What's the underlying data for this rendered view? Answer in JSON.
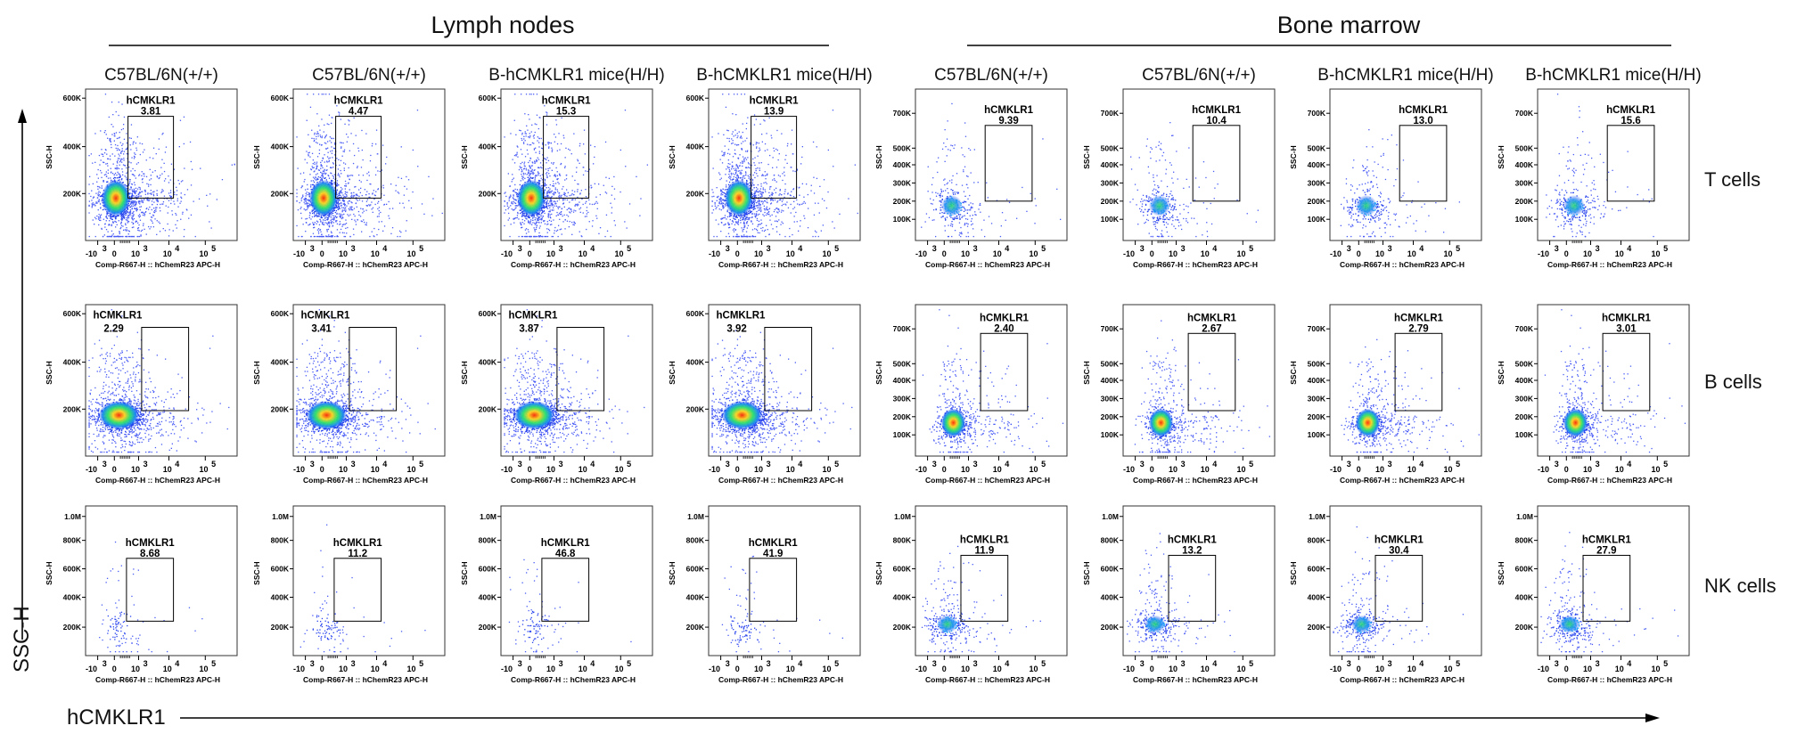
{
  "figure": {
    "tissues": [
      "Lymph nodes",
      "Bone marrow"
    ],
    "x_axis_title": "hCMKLR1",
    "y_axis_title": "SSC-H"
  },
  "chart_data": {
    "type": "scatter",
    "plot_kind": "flow cytometry density dot plots",
    "tissues": [
      "Lymph nodes",
      "Bone marrow"
    ],
    "columns": [
      "C57BL/6N(+/+)",
      "C57BL/6N(+/+)",
      "B-hCMKLR1 mice(H/H)",
      "B-hCMKLR1 mice(H/H)",
      "C57BL/6N(+/+)",
      "C57BL/6N(+/+)",
      "B-hCMKLR1 mice(H/H)",
      "B-hCMKLR1 mice(H/H)"
    ],
    "rows": [
      "T cells",
      "B cells",
      "NK cells"
    ],
    "gate_name": "hCMKLR1",
    "x_axis_label": "Comp-R667-H :: hChemR23 APC-H",
    "y_axis_label": "SSC-H",
    "x_ticks": [
      "-10",
      "3",
      "0",
      "10",
      "3",
      "10",
      "4",
      "10",
      "5"
    ],
    "y_ticks": {
      "lymph_tb": [
        "600K",
        "400K",
        "200K"
      ],
      "marrow_tb": [
        "700K",
        "500K",
        "400K",
        "300K",
        "200K",
        "100K"
      ],
      "nk": [
        "1.0M",
        "800K",
        "600K",
        "400K",
        "200K"
      ]
    },
    "gate_percent": {
      "T cells": [
        "3.81",
        "4.47",
        "15.3",
        "13.9",
        "9.39",
        "10.4",
        "13.0",
        "15.6"
      ],
      "B cells": [
        "2.29",
        "3.41",
        "3.87",
        "3.92",
        "2.40",
        "2.67",
        "2.79",
        "3.01"
      ],
      "NK cells": [
        "8.68",
        "11.2",
        "46.8",
        "41.9",
        "11.9",
        "13.2",
        "30.4",
        "27.9"
      ]
    },
    "grid": false,
    "legend": "none"
  }
}
